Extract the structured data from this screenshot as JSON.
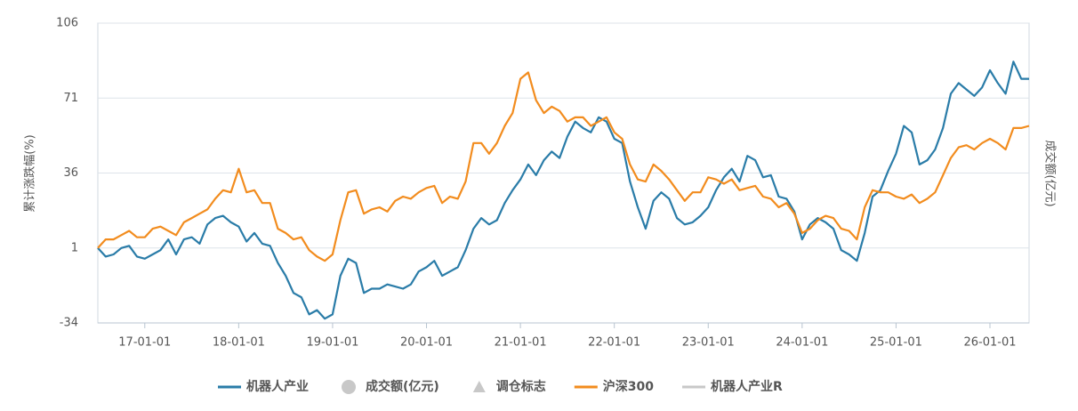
{
  "chart_data": {
    "type": "line",
    "ylabel": "累计涨跌幅(%)",
    "y2label": "成交额(亿元)",
    "ylim": [
      -34,
      106
    ],
    "yticks": [
      -34,
      1,
      36,
      71,
      106
    ],
    "grid": true,
    "x": [
      "16-07-01",
      "16-08-01",
      "16-09-01",
      "16-10-01",
      "16-11-01",
      "16-12-01",
      "17-01-01",
      "17-02-01",
      "17-03-01",
      "17-04-01",
      "17-05-01",
      "17-06-01",
      "17-07-01",
      "17-08-01",
      "17-09-01",
      "17-10-01",
      "17-11-01",
      "17-12-01",
      "18-01-01",
      "18-02-01",
      "18-03-01",
      "18-04-01",
      "18-05-01",
      "18-06-01",
      "18-07-01",
      "18-08-01",
      "18-09-01",
      "18-10-01",
      "18-11-01",
      "18-12-01",
      "19-01-01",
      "19-02-01",
      "19-03-01",
      "19-04-01",
      "19-05-01",
      "19-06-01",
      "19-07-01",
      "19-08-01",
      "19-09-01",
      "19-10-01",
      "19-11-01",
      "19-12-01",
      "20-01-01",
      "20-02-01",
      "20-03-01",
      "20-04-01",
      "20-05-01",
      "20-06-01",
      "20-07-01",
      "20-08-01",
      "20-09-01",
      "20-10-01",
      "20-11-01",
      "20-12-01",
      "21-01-01",
      "21-02-01",
      "21-03-01",
      "21-04-01",
      "21-05-01",
      "21-06-01",
      "21-07-01",
      "21-08-01",
      "21-09-01",
      "21-10-01",
      "21-11-01",
      "21-12-01",
      "22-01-01",
      "22-02-01",
      "22-03-01",
      "22-04-01",
      "22-05-01",
      "22-06-01",
      "22-07-01",
      "22-08-01",
      "22-09-01",
      "22-10-01",
      "22-11-01",
      "22-12-01",
      "23-01-01",
      "23-02-01",
      "23-03-01",
      "23-04-01",
      "23-05-01",
      "23-06-01",
      "23-07-01",
      "23-08-01",
      "23-09-01",
      "23-10-01",
      "23-11-01",
      "23-12-01",
      "24-01-01",
      "24-02-01",
      "24-03-01",
      "24-04-01",
      "24-05-01",
      "24-06-01",
      "24-07-01",
      "24-08-01",
      "24-09-01",
      "24-10-01",
      "24-11-01",
      "24-12-01",
      "25-01-01",
      "25-02-01",
      "25-03-01",
      "25-04-01",
      "25-05-01",
      "25-06-01",
      "25-07-01",
      "25-08-01",
      "25-09-01",
      "25-10-01",
      "25-11-01",
      "25-12-01",
      "26-01-01",
      "26-02-01",
      "26-03-01",
      "26-04-01",
      "26-05-01",
      "26-06-01"
    ],
    "xticks": [
      "17-01-01",
      "18-01-01",
      "19-01-01",
      "20-01-01",
      "21-01-01",
      "22-01-01",
      "23-01-01",
      "24-01-01",
      "25-01-01",
      "26-01-01"
    ],
    "series": [
      {
        "name": "机器人产业",
        "color": "#2a7ca8",
        "values": [
          1,
          -3,
          -2,
          1,
          2,
          -3,
          -4,
          -2,
          0,
          5,
          -2,
          5,
          6,
          3,
          12,
          15,
          16,
          13,
          11,
          4,
          8,
          3,
          2,
          -6,
          -12,
          -20,
          -22,
          -30,
          -28,
          -32,
          -30,
          -12,
          -4,
          -6,
          -20,
          -18,
          -18,
          -16,
          -17,
          -18,
          -16,
          -10,
          -8,
          -5,
          -12,
          -10,
          -8,
          0,
          10,
          15,
          12,
          14,
          22,
          28,
          33,
          40,
          35,
          42,
          46,
          43,
          53,
          60,
          57,
          55,
          62,
          60,
          52,
          50,
          32,
          20,
          10,
          23,
          27,
          24,
          15,
          12,
          13,
          16,
          20,
          28,
          34,
          38,
          32,
          44,
          42,
          34,
          35,
          25,
          24,
          18,
          5,
          12,
          15,
          13,
          10,
          0,
          -2,
          -5,
          8,
          25,
          28,
          37,
          45,
          58,
          55,
          40,
          42,
          47,
          57,
          73,
          78,
          75,
          72,
          76,
          84,
          78,
          73,
          88,
          80,
          80
        ]
      },
      {
        "name": "沪深300",
        "color": "#f28c1e",
        "values": [
          1,
          5,
          5,
          7,
          9,
          6,
          6,
          10,
          11,
          9,
          7,
          13,
          15,
          17,
          19,
          24,
          28,
          27,
          38,
          27,
          28,
          22,
          22,
          10,
          8,
          5,
          6,
          0,
          -3,
          -5,
          -2,
          14,
          27,
          28,
          17,
          19,
          20,
          18,
          23,
          25,
          24,
          27,
          29,
          30,
          22,
          25,
          24,
          32,
          50,
          50,
          45,
          50,
          58,
          64,
          80,
          83,
          70,
          64,
          67,
          65,
          60,
          62,
          62,
          58,
          60,
          62,
          55,
          52,
          40,
          33,
          32,
          40,
          37,
          33,
          28,
          23,
          27,
          27,
          34,
          33,
          31,
          33,
          28,
          29,
          30,
          25,
          24,
          20,
          22,
          17,
          8,
          10,
          14,
          16,
          15,
          10,
          9,
          5,
          20,
          28,
          27,
          27,
          25,
          24,
          26,
          22,
          24,
          27,
          35,
          43,
          48,
          49,
          47,
          50,
          52,
          50,
          47,
          57,
          57,
          58
        ]
      }
    ],
    "legend_inactive": [
      {
        "name": "成交额(亿元)",
        "marker": "circle",
        "after": 0
      },
      {
        "name": "调仓标志",
        "marker": "triangle",
        "after": 0
      },
      {
        "name": "机器人产业R",
        "marker": "line",
        "after": 1
      }
    ],
    "inactive_color": "#c8c8c8"
  }
}
